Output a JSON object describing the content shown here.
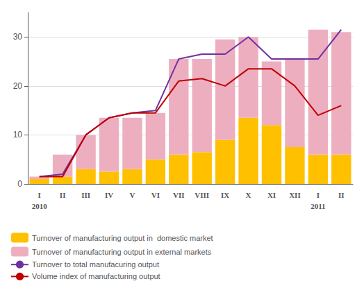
{
  "chart_data": {
    "type": "bar",
    "categories": [
      "I",
      "II",
      "III",
      "IV",
      "V",
      "VI",
      "VII",
      "VIII",
      "IX",
      "X",
      "XI",
      "XII",
      "I",
      "II"
    ],
    "annotations": [
      "2010",
      null,
      null,
      null,
      null,
      null,
      null,
      null,
      null,
      null,
      null,
      null,
      "2011",
      null
    ],
    "stacked": true,
    "series": [
      {
        "name": "Turnover of manufacturing output in  domestic market",
        "type": "bar",
        "color": "#FFC000",
        "values": [
          1.0,
          1.5,
          3.0,
          2.5,
          3.0,
          5.0,
          6.0,
          6.5,
          9.0,
          13.5,
          12.0,
          7.5,
          6.0,
          6.0
        ]
      },
      {
        "name": "Turnover of manufacturing output in external markets",
        "type": "bar",
        "color": "#EDAFC0",
        "values": [
          0.5,
          4.5,
          7.0,
          11.0,
          10.5,
          9.5,
          19.5,
          19.0,
          20.5,
          16.5,
          13.0,
          18.0,
          25.5,
          25.0
        ]
      },
      {
        "name": "Turnover to total manufacuring output",
        "type": "line",
        "color": "#7030A0",
        "values": [
          1.5,
          2.0,
          10.0,
          13.5,
          14.5,
          15.0,
          25.5,
          26.5,
          26.5,
          30.0,
          25.5,
          25.5,
          25.5,
          31.5
        ]
      },
      {
        "name": "Volume index of manufacturing output",
        "type": "line",
        "color": "#C00000",
        "values": [
          1.5,
          1.5,
          10.0,
          13.5,
          14.5,
          14.5,
          21.0,
          21.5,
          20.0,
          23.5,
          23.5,
          20.0,
          14.0,
          16.0
        ]
      }
    ],
    "ylim": [
      0,
      35
    ],
    "yticks": [
      0,
      10,
      20,
      30
    ],
    "grid": true,
    "legend": "bottom"
  }
}
